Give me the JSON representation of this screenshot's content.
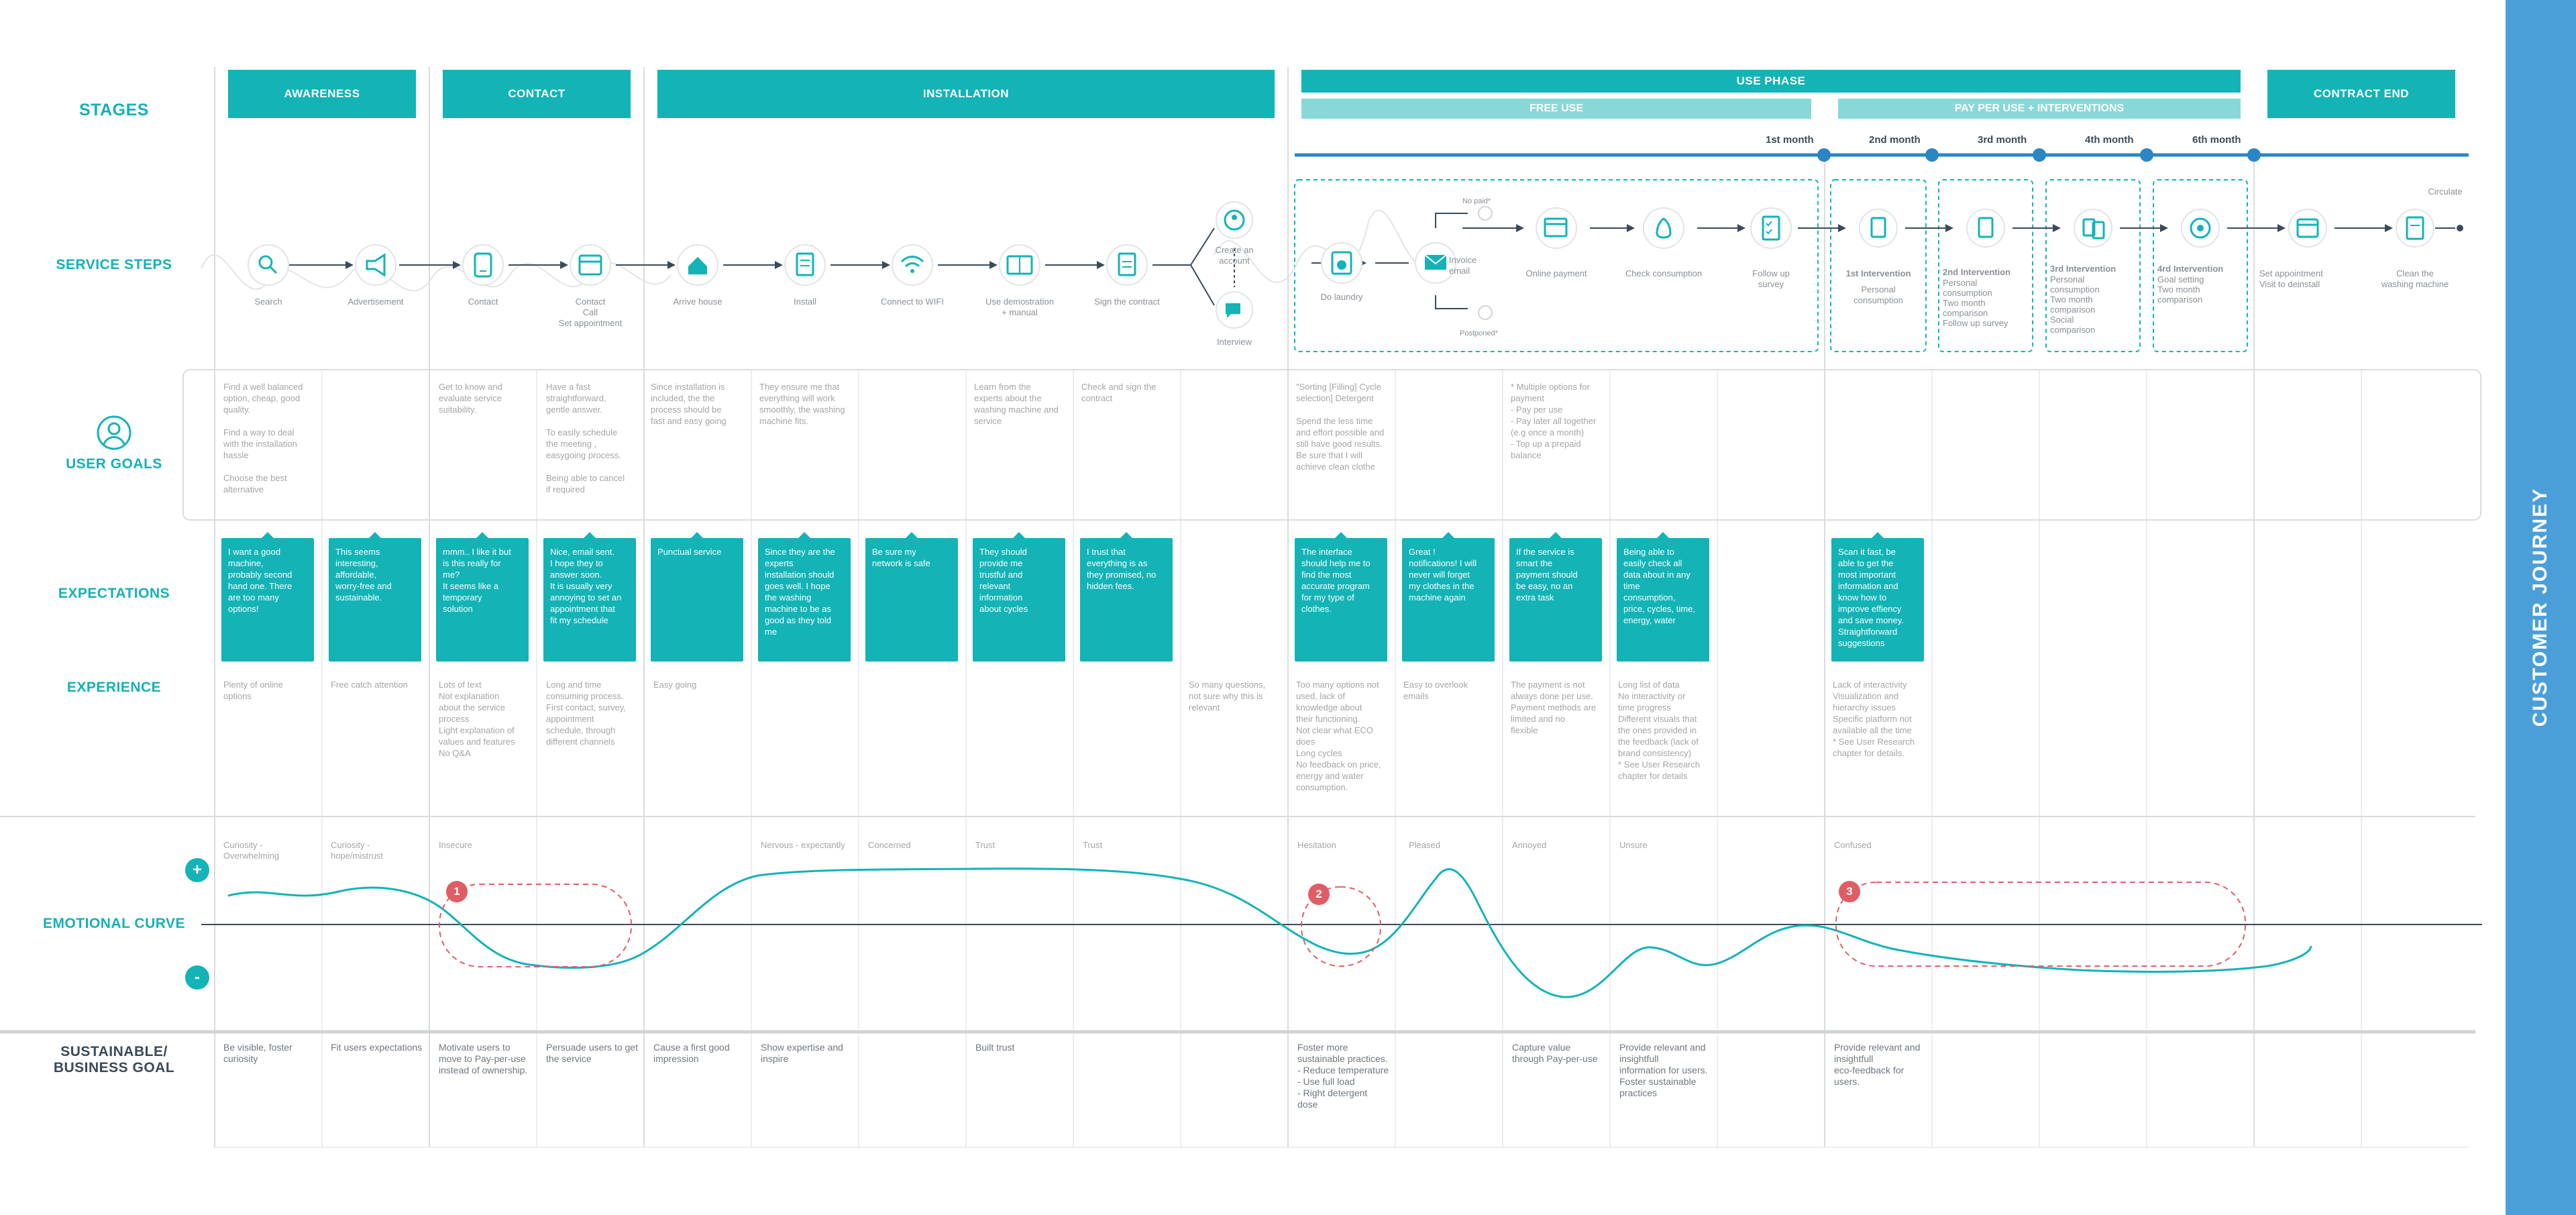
{
  "row_labels": {
    "stages": "STAGES",
    "service_steps": "SERVICE STEPS",
    "user_goals": "USER GOALS",
    "expectations": "EXPECTATIONS",
    "experience": "EXPERIENCE",
    "emotional_curve": "EMOTIONAL CURVE",
    "business_goal_line1": "SUSTAINABLE/",
    "business_goal_line2": "BUSINESS GOAL"
  },
  "stages": {
    "awareness": "AWARENESS",
    "contact": "CONTACT",
    "installation": "INSTALLATION",
    "use_phase": "USE PHASE",
    "free_use": "FREE USE",
    "pay_per_use": "PAY PER USE + INTERVENTIONS",
    "contract_end": "CONTRACT END"
  },
  "months": [
    "1st month",
    "2nd month",
    "3rd month",
    "4th month",
    "6th month"
  ],
  "steps": {
    "search": "Search",
    "advertisement": "Advertisement",
    "contact": "Contact",
    "contact_call": "Contact\nCall\nSet appointment",
    "arrive_house": "Arrive house",
    "install": "Install",
    "connect_wifi": "Connect to WIFI",
    "use_demo": "Use demostration\n+ manual",
    "sign_contract": "Sign the contract",
    "create_account": "Create an\naccount",
    "interview": "Interview",
    "do_laundry": "Do laundry",
    "invoice_email": "Invoice\nemail",
    "no_paid": "No paid*",
    "postponed": "Postponed*",
    "online_payment": "Online payment",
    "check_consumption": "Check consumption",
    "follow_up": "Follow up\nsurvey",
    "i1_title": "1st Intervention",
    "i1_body": "Personal\nconsumption",
    "i2_title": "2nd Intervention",
    "i2_body": "Personal\nconsumption\nTwo  month\ncomparison\nFollow up survey",
    "i3_title": "3rd Intervention",
    "i3_body": "Personal\nconsumption\nTwo month\ncomparison\nSocial\ncomparison",
    "i4_title": "4rd Intervention",
    "i4_body": "Goal setting\nTwo  month\ncomparison",
    "set_appointment": "Set appointment\nVisit to deinstall",
    "clean_machine": "Clean the\nwashing machine",
    "circulate": "Circulate"
  },
  "goals": [
    "Find a well balanced\noption, cheap, good\nquality.\n\nFind a way to deal\nwith the installation\nhassle\n\nChoose the best\nalternative",
    "Get to know and\nevaluate  service\nsuitability.",
    "Have a fast\nstraightforward,\ngentle answer.\n\nTo easily schedule\nthe meeting ,\neasygoing process.\n\nBeing able to cancel\nif required",
    "Since installation is\nincluded, the the\nprocess should be\nfast and easy going",
    "They ensure me that\neverything will work\nsmoothly, the washing\nmachine fits.",
    "Learn from the\nexperts about the\nwashing machine and\nservice",
    "Check and sign the\ncontract",
    "\"Sorting [Filling] Cycle\nselection] Detergent\n\nSpend the less time\nand effort possible and\nstill have good results.\nBe sure that I will\nachieve clean clothe",
    "* Multiple options for\npayment\n- Pay per use\n- Pay later all together\n(e.g once a month)\n- Top up a prepaid\nbalance"
  ],
  "expectations": [
    "I want a good\nmachine,\nprobably second\nhand one. There\nare too many\noptions!",
    "This seems\ninteresting,\naffordable,\nworry-free and\nsustainable.",
    "mmm.. I like  it but\nis this really for\nme?\nIt seems like a\ntemporary\nsolution",
    "Nice, email sent.\nI hope they to\nanswer soon.\nIt is usually very\nannoying to set an\nappointment that\nfit my schedule",
    "Punctual service",
    "Since they are the\nexperts\ninstallation should\ngoes well. I hope\nthe washing\nmachine to be as\ngood as they told\nme",
    "Be sure my\nnetwork is safe",
    "They should\nprovide me\ntrustful and\nrelevant\ninformation\nabout cycles",
    "I trust that\neverything is as\nthey promised, no\nhidden fees.",
    "The interface\nshould help me to\nfind the most\naccurate program\nfor my type of\nclothes.",
    "Great !\nnotifications! I will\nnever will forget\nmy clothes in the\nmachine  again",
    "If the service is\nsmart the\npayment should\nbe easy, no an\nextra task",
    "Being able to\neasily check all\ndata about in any\ntime\nconsumption,\nprice, cycles, time,\nenergy, water",
    "Scan it fast, be\nable to get the\nmost important\ninformation and\nknow how to\nimprove effiency\nand save money.\nStraightforward\nsuggestions"
  ],
  "experience": [
    "Plenty of online\noptions",
    "Free  catch attention",
    "Lots of text\nNot  explanation\nabout the service\nprocess\nLight explanation of\nvalues and features\nNo Q&A",
    "Long and time\nconsuming  process.\nFirst contact, survey,\nappointment\nschedule, through\ndifferent channels",
    "Easy going",
    "So many questions,\nnot sure why this is\nrelevant",
    "Too many options not\nused, lack of\nknowledge about\ntheir functioning.\nNot clear what  ECO\ndoes\nLong cycles\nNo feedback on price,\nenergy and water\nconsumption.",
    "Easy to overlook\nemails",
    "The payment is not\nalways done per use.\nPayment methods are\nlimited and no\nflexible",
    "Long list of data\nNo interactivity or\ntime progress\nDifferent visuals that\nthe ones provided in\nthe feedback (lack of\nbrand consistency)\n* See User Research\nchapter for details",
    "Lack of interactivity\nVisualization and\nhierarchy issues\nSpecific platform not\navailable all the time\n* See User Research\nchapter for details."
  ],
  "emotions": [
    "Curiosity -\nOverwhelming",
    "Curiosity -\nhope/mistrust",
    "Insecure",
    "Nervous - expectantly",
    "Concerned",
    "Trust",
    "Trust",
    "Hesitation",
    "Pleased",
    "Annoyed",
    "Unsure",
    "Confused"
  ],
  "emotion_markers": [
    "+",
    "-"
  ],
  "pain_points": [
    "1",
    "2",
    "3"
  ],
  "business_goals": [
    "Be visible,  foster\ncuriosity",
    "Fit users expectations",
    "Motivate users to\nmove to Pay-per-use\ninstead of ownership.",
    "Persuade users to get\nthe service",
    "Cause a first good\nimpression",
    "Show expertise and\ninspire",
    "Built trust",
    "Foster more\nsustainable practices.\n- Reduce temperature\n- Use full load\n- Right detergent\ndose",
    "Capture value\nthrough Pay-per-use",
    "Provide relevant and\ninsightfull\ninformation for users.\nFoster sustainable\npractices",
    "Provide relevant and\ninsightfull\neco-feedback for\nusers."
  ],
  "sidebar_title": "CUSTOMER JOURNEY",
  "colors": {
    "teal": "#13b3b6",
    "light_teal": "#88d8d8",
    "blue": "#2a86c4",
    "sidebar": "#4b9fd9",
    "pain": "#e05d63",
    "label_dark": "#3b4a5a"
  }
}
